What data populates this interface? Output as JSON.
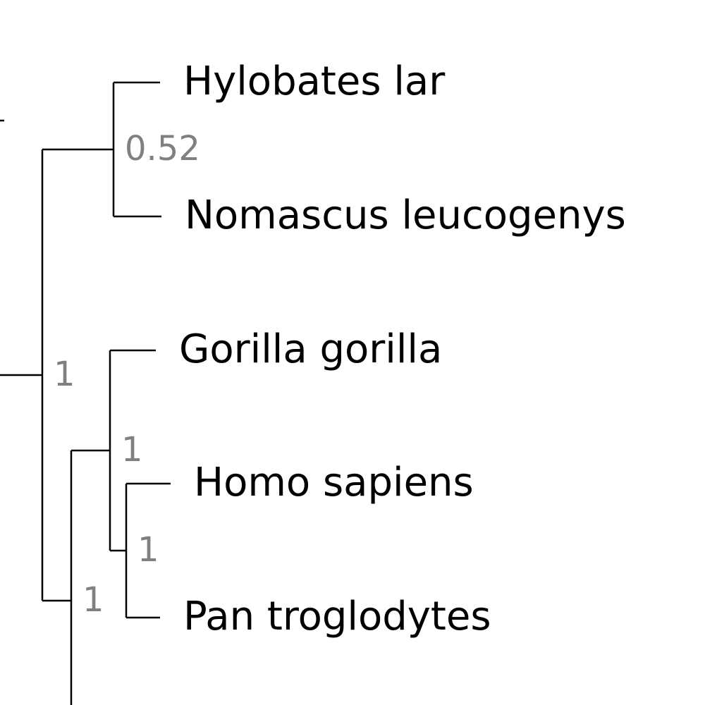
{
  "tree": {
    "tip_label_color": "#000000",
    "support_color": "#808080",
    "branch_color": "#000000",
    "tips": [
      {
        "label": "Hylobates lar"
      },
      {
        "label": "Nomascus leucogenys"
      },
      {
        "label": "Gorilla gorilla"
      },
      {
        "label": "Homo sapiens"
      },
      {
        "label": "Pan troglodytes"
      }
    ],
    "clades": [
      {
        "members": [
          "Hylobates lar",
          "Nomascus leucogenys"
        ],
        "support": "0.52"
      },
      {
        "members": [
          "Hylobates lar",
          "Nomascus leucogenys",
          "Gorilla gorilla",
          "Homo sapiens",
          "Pan troglodytes"
        ],
        "support": "1"
      },
      {
        "members": [
          "Gorilla gorilla",
          "Homo sapiens",
          "Pan troglodytes"
        ],
        "support": "1"
      },
      {
        "members": [
          "Homo sapiens",
          "Pan troglodytes"
        ],
        "support": "1"
      },
      {
        "members": [
          "Gorilla gorilla",
          "Homo sapiens",
          "Pan troglodytes"
        ],
        "support": "1",
        "note_rank": "outer"
      }
    ]
  }
}
